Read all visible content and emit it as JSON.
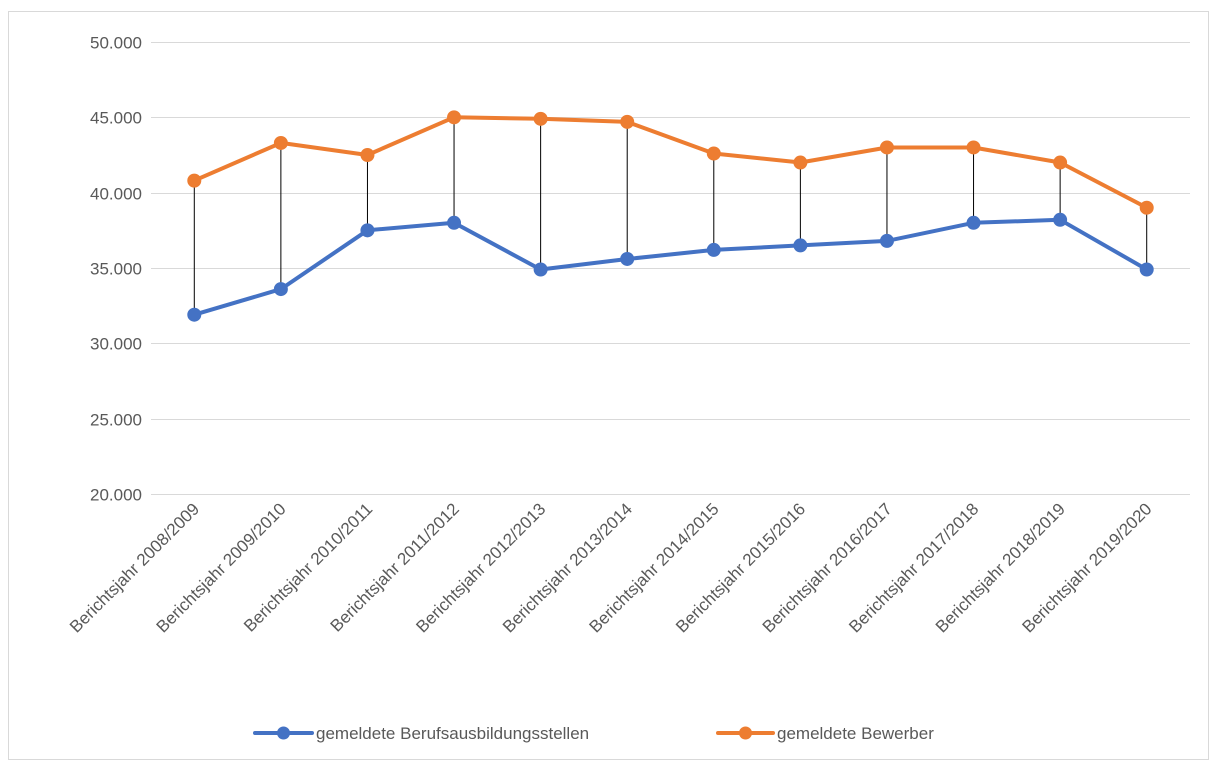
{
  "chart_data": {
    "type": "line",
    "categories": [
      "Berichtsjahr 2008/2009",
      "Berichtsjahr 2009/2010",
      "Berichtsjahr 2010/2011",
      "Berichtsjahr 2011/2012",
      "Berichtsjahr 2012/2013",
      "Berichtsjahr 2013/2014",
      "Berichtsjahr 2014/2015",
      "Berichtsjahr 2015/2016",
      "Berichtsjahr 2016/2017",
      "Berichtsjahr 2017/2018",
      "Berichtsjahr 2018/2019",
      "Berichtsjahr 2019/2020"
    ],
    "series": [
      {
        "name": "gemeldete Berufsausbildungsstellen",
        "color": "#4472c4",
        "values": [
          31900,
          33600,
          37500,
          38000,
          34900,
          35600,
          36200,
          36500,
          36800,
          38000,
          38200,
          34900
        ]
      },
      {
        "name": "gemeldete Bewerber",
        "color": "#ed7d31",
        "values": [
          40800,
          43300,
          42500,
          45000,
          44900,
          44700,
          42600,
          42000,
          43000,
          43000,
          42000,
          39000
        ]
      }
    ],
    "ylim": [
      20000,
      50000
    ],
    "yticks": [
      20000,
      25000,
      30000,
      35000,
      40000,
      45000,
      50000
    ],
    "ytick_labels": [
      "20.000",
      "25.000",
      "30.000",
      "35.000",
      "40.000",
      "45.000",
      "50.000"
    ],
    "drop_lines": true,
    "grid": true,
    "legend_position": "bottom",
    "title": "",
    "xlabel": "",
    "ylabel": ""
  }
}
